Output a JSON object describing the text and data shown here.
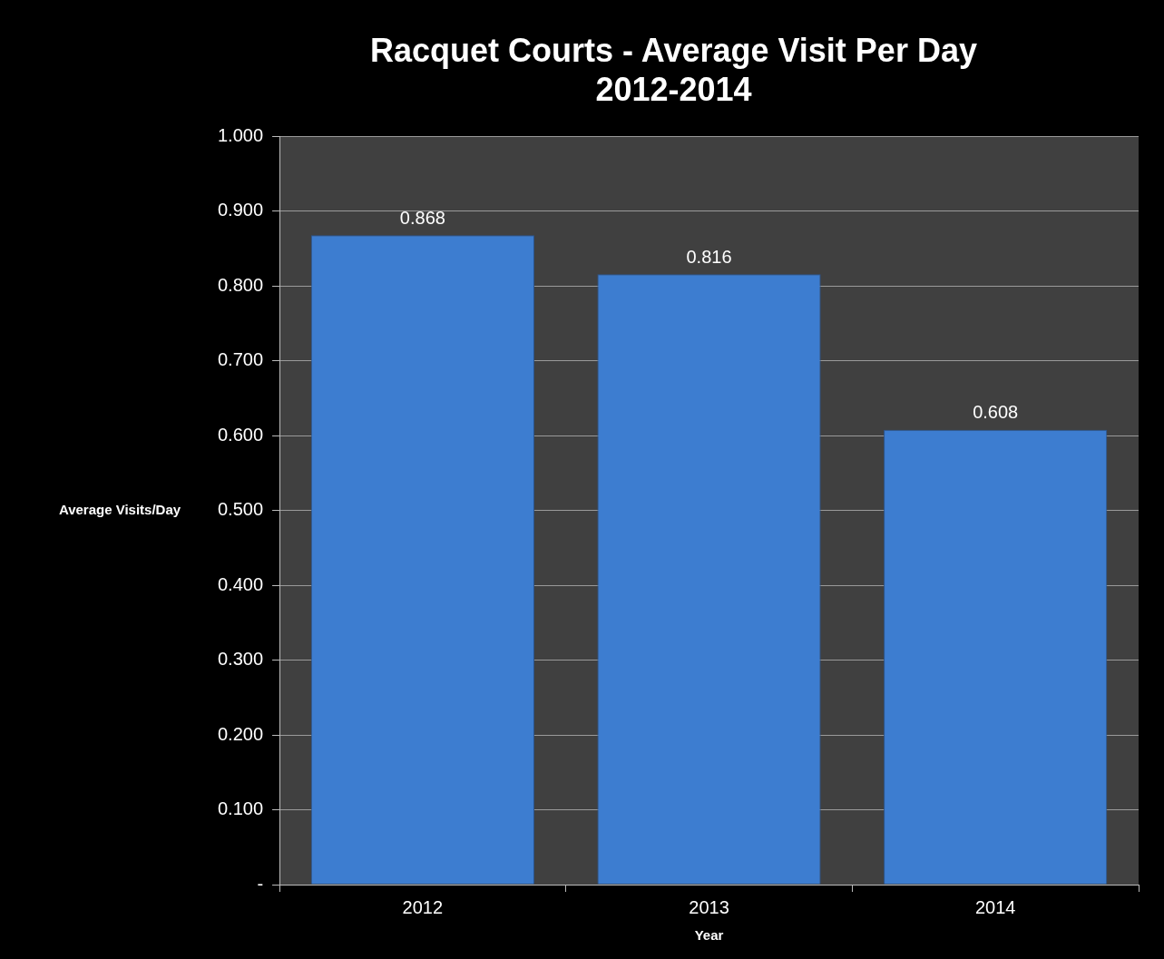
{
  "chart_data": {
    "type": "bar",
    "title": "Racquet Courts - Average Visit Per Day\n2012-2014",
    "xlabel": "Year",
    "ylabel": "Average Visits/Day",
    "categories": [
      "2012",
      "2013",
      "2014"
    ],
    "values": [
      0.868,
      0.816,
      0.608
    ],
    "color": "#3d7dd0",
    "ylim": [
      0,
      1
    ],
    "yticks": [
      {
        "value": 0,
        "label": "-"
      },
      {
        "value": 0.1,
        "label": "0.100"
      },
      {
        "value": 0.2,
        "label": "0.200"
      },
      {
        "value": 0.3,
        "label": "0.300"
      },
      {
        "value": 0.4,
        "label": "0.400"
      },
      {
        "value": 0.5,
        "label": "0.500"
      },
      {
        "value": 0.6,
        "label": "0.600"
      },
      {
        "value": 0.7,
        "label": "0.700"
      },
      {
        "value": 0.8,
        "label": "0.800"
      },
      {
        "value": 0.9,
        "label": "0.900"
      },
      {
        "value": 1,
        "label": "1.000"
      }
    ],
    "grid": "y",
    "legend": false,
    "data_labels": true
  }
}
